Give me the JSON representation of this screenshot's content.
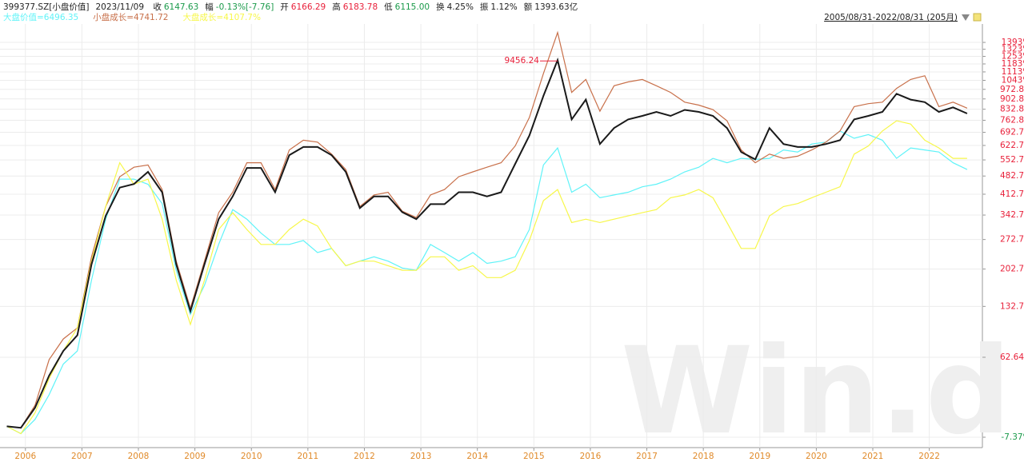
{
  "header": {
    "code": "399377.SZ[小盘价值]",
    "date": "2023/11/09",
    "fields": [
      {
        "label": "收",
        "value": "6147.63",
        "color": "#1a9a4a"
      },
      {
        "label": "幅",
        "value": "-0.13%[-7.76]",
        "color": "#1a9a4a"
      },
      {
        "label": "开",
        "value": "6166.29",
        "color": "#e8203a"
      },
      {
        "label": "高",
        "value": "6183.78",
        "color": "#e8203a"
      },
      {
        "label": "低",
        "value": "6115.00",
        "color": "#1a9a4a"
      },
      {
        "label": "换",
        "value": "4.25%",
        "color": "#222222"
      },
      {
        "label": "振",
        "value": "1.12%",
        "color": "#222222"
      },
      {
        "label": "额",
        "value": "1393.63亿",
        "color": "#222222"
      }
    ]
  },
  "chart_data": {
    "type": "line",
    "range_label": "2005/08/31-2022/08/31 (205月)",
    "watermark": "Win.d",
    "annotation": {
      "text": "9456.24",
      "point": 39
    },
    "log_scale": true,
    "grid": true,
    "xlim": [
      2005.55,
      2022.94
    ],
    "xticks": [
      2006,
      2007,
      2008,
      2009,
      2010,
      2011,
      2012,
      2013,
      2014,
      2015,
      2016,
      2017,
      2018,
      2019,
      2020,
      2021,
      2022
    ],
    "ylim": [
      -13.9,
      1678
    ],
    "yticks": [
      {
        "value": -7.37,
        "label": "-7.37%"
      },
      {
        "value": 62.64,
        "label": "62.64%"
      },
      {
        "value": 132.7,
        "label": "132.7%"
      },
      {
        "value": 202.7,
        "label": "202.7%"
      },
      {
        "value": 272.7,
        "label": "272.7%"
      },
      {
        "value": 342.7,
        "label": "342.7%"
      },
      {
        "value": 412.7,
        "label": "412.7%"
      },
      {
        "value": 482.7,
        "label": "482.7%"
      },
      {
        "value": 552.7,
        "label": "552.7%"
      },
      {
        "value": 622.7,
        "label": "622.7%"
      },
      {
        "value": 692.7,
        "label": "692.7%"
      },
      {
        "value": 762.8,
        "label": "762.8%"
      },
      {
        "value": 832.8,
        "label": "832.8%"
      },
      {
        "value": 902.8,
        "label": "902.8%"
      },
      {
        "value": 972.8,
        "label": "972.8%"
      },
      {
        "value": 1043,
        "label": "1043%"
      },
      {
        "value": 1113,
        "label": "1113%"
      },
      {
        "value": 1183,
        "label": "1183%"
      },
      {
        "value": 1253,
        "label": "1253%"
      },
      {
        "value": 1323,
        "label": "1323%"
      },
      {
        "value": 1393,
        "label": "1393%"
      }
    ],
    "x": [
      2005.67,
      2005.92,
      2006.17,
      2006.42,
      2006.67,
      2006.92,
      2007.17,
      2007.42,
      2007.67,
      2007.92,
      2008.17,
      2008.42,
      2008.67,
      2008.92,
      2009.17,
      2009.42,
      2009.67,
      2009.92,
      2010.17,
      2010.42,
      2010.67,
      2010.92,
      2011.17,
      2011.42,
      2011.67,
      2011.92,
      2012.17,
      2012.42,
      2012.67,
      2012.92,
      2013.17,
      2013.42,
      2013.67,
      2013.92,
      2014.17,
      2014.42,
      2014.67,
      2014.92,
      2015.17,
      2015.42,
      2015.67,
      2015.92,
      2016.17,
      2016.42,
      2016.67,
      2016.92,
      2017.17,
      2017.42,
      2017.67,
      2017.92,
      2018.17,
      2018.42,
      2018.67,
      2018.92,
      2019.17,
      2019.42,
      2019.67,
      2019.92,
      2020.17,
      2020.42,
      2020.67,
      2020.92,
      2021.17,
      2021.42,
      2021.67,
      2021.92,
      2022.17,
      2022.42,
      2022.67
    ],
    "series": [
      {
        "name": "大盘价值=6496.35",
        "color": "#5ff3f8",
        "values": [
          0,
          -5,
          5,
          25,
          55,
          70,
          180,
          330,
          470,
          470,
          450,
          380,
          200,
          120,
          170,
          260,
          360,
          330,
          290,
          260,
          260,
          270,
          240,
          250,
          210,
          220,
          230,
          220,
          205,
          200,
          260,
          240,
          220,
          240,
          215,
          220,
          230,
          300,
          530,
          610,
          420,
          450,
          400,
          410,
          420,
          440,
          450,
          470,
          500,
          520,
          560,
          540,
          560,
          555,
          560,
          600,
          590,
          630,
          640,
          700,
          660,
          680,
          650,
          560,
          610,
          600,
          590,
          540,
          510
        ]
      },
      {
        "name": "小盘成长=4741.72",
        "color": "#c8704a",
        "values": [
          0,
          -1,
          16,
          60,
          85,
          100,
          230,
          370,
          480,
          520,
          530,
          430,
          220,
          130,
          220,
          350,
          420,
          540,
          540,
          430,
          600,
          650,
          640,
          580,
          510,
          370,
          410,
          420,
          355,
          335,
          410,
          430,
          480,
          500,
          520,
          540,
          620,
          780,
          1100,
          1500,
          950,
          1050,
          820,
          1000,
          1030,
          1050,
          1000,
          950,
          880,
          860,
          830,
          760,
          600,
          540,
          580,
          560,
          570,
          600,
          640,
          700,
          850,
          870,
          880,
          980,
          1050,
          1080,
          850,
          880,
          840
        ]
      },
      {
        "name": "大盘成长=4107.7%",
        "color": "#f7f74a",
        "values": [
          0,
          -5,
          10,
          40,
          70,
          100,
          220,
          370,
          540,
          450,
          470,
          330,
          180,
          105,
          180,
          300,
          350,
          300,
          260,
          260,
          300,
          330,
          310,
          250,
          210,
          220,
          220,
          210,
          200,
          200,
          230,
          230,
          200,
          210,
          185,
          185,
          200,
          270,
          390,
          430,
          320,
          330,
          320,
          330,
          340,
          350,
          360,
          400,
          410,
          430,
          400,
          320,
          250,
          250,
          340,
          370,
          380,
          400,
          420,
          440,
          580,
          620,
          700,
          760,
          740,
          650,
          610,
          560,
          560
        ]
      },
      {
        "color": "#1a1a1a",
        "values": [
          0,
          -1,
          14,
          43,
          70,
          90,
          213,
          340,
          437,
          451,
          500,
          420,
          213,
          125,
          213,
          330,
          405,
          517,
          517,
          420,
          575,
          615,
          615,
          575,
          500,
          365,
          405,
          405,
          352,
          330,
          378,
          378,
          420,
          420,
          405,
          420,
          535,
          675,
          925,
          1218,
          768,
          898,
          630,
          717,
          768,
          790,
          815,
          790,
          828,
          815,
          790,
          717,
          590,
          555,
          717,
          630,
          615,
          615,
          630,
          650,
          768,
          790,
          815,
          940,
          898,
          880,
          815,
          845,
          805
        ]
      }
    ]
  }
}
